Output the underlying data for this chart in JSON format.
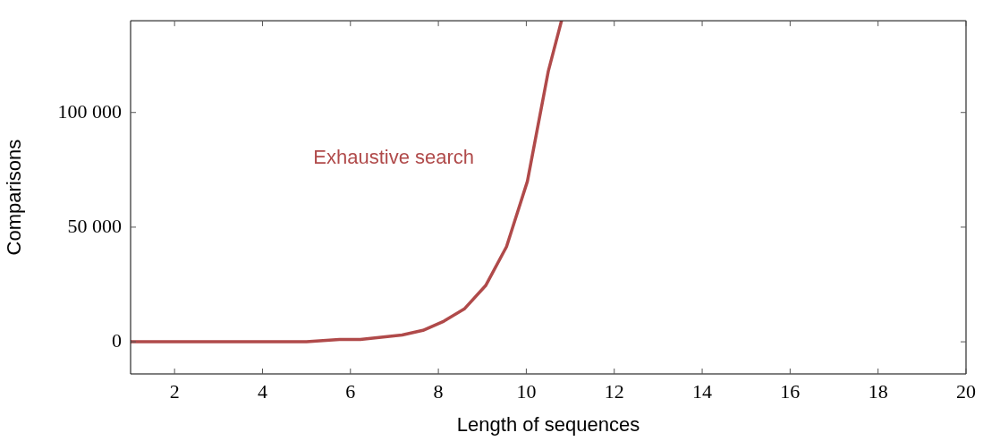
{
  "chart_data": {
    "type": "line",
    "xlabel": "Length of sequences",
    "ylabel": "Comparisons",
    "xlim": [
      1,
      20
    ],
    "xticks": [
      2,
      4,
      6,
      8,
      10,
      12,
      14,
      16,
      18,
      20
    ],
    "ylim": [
      -14000,
      140000
    ],
    "yticks": [
      {
        "value": 0,
        "label": "0"
      },
      {
        "value": 50000,
        "label": "50 000"
      },
      {
        "value": 100000,
        "label": "100 000"
      }
    ],
    "grid": false,
    "legend": false,
    "marker": "none",
    "line_style": "solid",
    "series": [
      {
        "name": "Exhaustive search",
        "color": "#b04a4a",
        "x": [
          1,
          2,
          3,
          4,
          5,
          5.75,
          6.225,
          6.7,
          7.175,
          7.65,
          8.125,
          8.6,
          9.075,
          9.55,
          10.025,
          10.5,
          10.8
        ],
        "values": [
          0,
          0,
          0,
          0,
          0,
          1000,
          1000,
          2000,
          3000,
          5000,
          9000,
          14500,
          24500,
          41500,
          70000,
          118000,
          140000
        ]
      }
    ]
  }
}
